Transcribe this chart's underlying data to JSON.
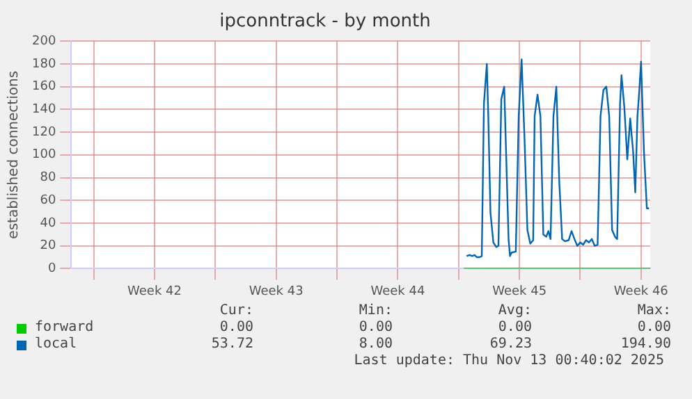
{
  "chart_data": {
    "type": "line",
    "title": "ipconntrack - by month",
    "ylabel": "established connections",
    "xlim": [
      "2025-10-10T17:00",
      "2025-11-13T00:40"
    ],
    "xticks": [
      {
        "value": "2025-10-12T00:00",
        "label": null
      },
      {
        "value": "2025-10-15T12:00",
        "label": "Week 42"
      },
      {
        "value": "2025-10-19T00:00",
        "label": null
      },
      {
        "value": "2025-10-22T12:00",
        "label": "Week 43"
      },
      {
        "value": "2025-10-26T00:00",
        "label": null
      },
      {
        "value": "2025-10-29T12:00",
        "label": "Week 44"
      },
      {
        "value": "2025-11-02T00:00",
        "label": null
      },
      {
        "value": "2025-11-05T12:00",
        "label": "Week 45"
      },
      {
        "value": "2025-11-09T00:00",
        "label": null
      },
      {
        "value": "2025-11-12T12:00",
        "label": "Week 46"
      }
    ],
    "ylim": [
      0,
      200
    ],
    "yticks": [
      0,
      20,
      40,
      60,
      80,
      100,
      120,
      140,
      160,
      180,
      200
    ],
    "grid": true,
    "legend": "bottom",
    "marker": "none",
    "line_style": "solid",
    "series": [
      {
        "name": "forward",
        "color": "#00cc00",
        "x": [
          "2025-11-02T07:00",
          "2025-11-13T00:40"
        ],
        "values": [
          0,
          0
        ]
      },
      {
        "name": "local",
        "color": "#0066b3",
        "x": [
          "2025-11-02T11:00",
          "2025-11-02T15:00",
          "2025-11-02T19:00",
          "2025-11-02T22:00",
          "2025-11-03T01:00",
          "2025-11-03T05:00",
          "2025-11-03T08:00",
          "2025-11-03T11:00",
          "2025-11-03T15:00",
          "2025-11-03T17:00",
          "2025-11-03T20:00",
          "2025-11-04T00:00",
          "2025-11-04T04:00",
          "2025-11-04T07:00",
          "2025-11-04T11:00",
          "2025-11-04T15:00",
          "2025-11-04T17:00",
          "2025-11-04T21:00",
          "2025-11-04T23:00",
          "2025-11-05T01:00",
          "2025-11-05T07:00",
          "2025-11-05T11:00",
          "2025-11-05T15:00",
          "2025-11-05T19:00",
          "2025-11-05T23:00",
          "2025-11-06T03:00",
          "2025-11-06T07:00",
          "2025-11-06T09:00",
          "2025-11-06T13:00",
          "2025-11-06T17:00",
          "2025-11-06T21:00",
          "2025-11-07T01:00",
          "2025-11-07T04:00",
          "2025-11-07T07:00",
          "2025-11-07T11:00",
          "2025-11-07T15:00",
          "2025-11-07T19:00",
          "2025-11-07T23:00",
          "2025-11-08T03:00",
          "2025-11-08T08:00",
          "2025-11-08T12:00",
          "2025-11-08T16:00",
          "2025-11-08T20:00",
          "2025-11-09T00:00",
          "2025-11-09T04:00",
          "2025-11-09T08:00",
          "2025-11-09T12:00",
          "2025-11-09T16:00",
          "2025-11-09T20:00",
          "2025-11-10T00:00",
          "2025-11-10T04:00",
          "2025-11-10T08:00",
          "2025-11-10T12:00",
          "2025-11-10T16:00",
          "2025-11-10T20:00",
          "2025-11-11T00:00",
          "2025-11-11T03:00",
          "2025-11-11T07:00",
          "2025-11-11T09:00",
          "2025-11-11T13:00",
          "2025-11-11T17:00",
          "2025-11-11T21:00",
          "2025-11-12T01:00",
          "2025-11-12T04:00",
          "2025-11-12T07:00",
          "2025-11-12T09:00",
          "2025-11-12T12:00",
          "2025-11-12T16:00",
          "2025-11-12T20:00",
          "2025-11-12T23:00"
        ],
        "values": [
          11,
          12,
          11,
          12,
          10,
          10,
          11,
          145,
          180,
          134,
          49,
          23,
          19,
          20,
          149,
          160,
          115,
          26,
          11,
          14,
          15,
          134,
          184,
          115,
          34,
          22,
          25,
          134,
          153,
          134,
          30,
          28,
          33,
          26,
          134,
          160,
          77,
          26,
          24,
          25,
          33,
          26,
          20,
          23,
          21,
          25,
          23,
          26,
          20,
          21,
          134,
          157,
          160,
          134,
          34,
          28,
          26,
          145,
          170,
          141,
          96,
          132,
          103,
          67,
          134,
          151,
          182,
          103,
          53,
          53
        ]
      }
    ],
    "annotations": [
      "Cur:",
      "Min:",
      "Avg:",
      "Max:",
      "0.00",
      "0.00",
      "0.00",
      "0.00",
      "53.72",
      "8.00",
      "69.23",
      "194.90",
      "Last update: Thu Nov 13 00:40:02 2025"
    ]
  }
}
